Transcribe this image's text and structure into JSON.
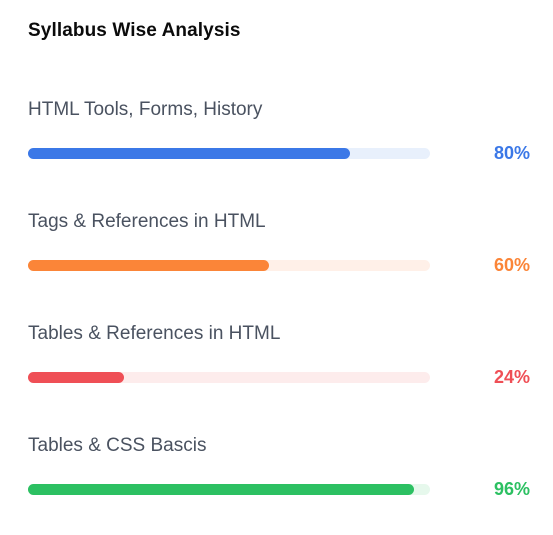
{
  "header": {
    "title": "Syllabus Wise Analysis"
  },
  "items": [
    {
      "label": "HTML Tools, Forms, History",
      "percent_label": "80%",
      "progress": 0.8,
      "color": "#3b78e7",
      "track_color": "#e8f0fc"
    },
    {
      "label": "Tags & References in HTML",
      "percent_label": "60%",
      "progress": 0.6,
      "color": "#fb8538",
      "track_color": "#fff0e8"
    },
    {
      "label": "Tables & References in HTML",
      "percent_label": "24%",
      "progress": 0.24,
      "color": "#ef4f56",
      "track_color": "#fdecec"
    },
    {
      "label": "Tables & CSS Bascis",
      "percent_label": "96%",
      "progress": 0.96,
      "color": "#2cc062",
      "track_color": "#e6f8ec"
    }
  ]
}
